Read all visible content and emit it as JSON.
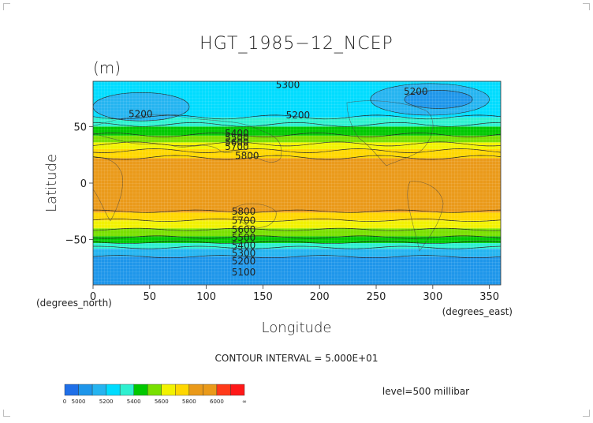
{
  "chart_data": {
    "type": "heatmap",
    "title": "HGT_1985−12_NCEP",
    "units": "(m)",
    "xlabel": "Longitude",
    "ylabel": "Latitude",
    "xunit_label": "(degrees_east)",
    "yunit_label": "(degrees_north)",
    "xlim": [
      0,
      360
    ],
    "ylim": [
      -90,
      90
    ],
    "xticks": [
      0,
      50,
      100,
      150,
      200,
      250,
      300,
      350
    ],
    "yticks": [
      -50,
      0,
      50
    ],
    "contour_interval_text": "CONTOUR INTERVAL = 5.000E+01",
    "level_text": "level=500 millibar",
    "colorbar": {
      "tick_labels": [
        "0",
        "5000",
        "5200",
        "5400",
        "5600",
        "5800",
        "6000",
        "∞"
      ],
      "bins": [
        {
          "lo": 0,
          "hi": 5000,
          "color": "#1f6fe8"
        },
        {
          "lo": 5000,
          "hi": 5100,
          "color": "#1e96ea"
        },
        {
          "lo": 5100,
          "hi": 5200,
          "color": "#25b4f0"
        },
        {
          "lo": 5200,
          "hi": 5300,
          "color": "#00dcff"
        },
        {
          "lo": 5300,
          "hi": 5400,
          "color": "#2ef0d0"
        },
        {
          "lo": 5400,
          "hi": 5500,
          "color": "#00c800"
        },
        {
          "lo": 5500,
          "hi": 5600,
          "color": "#78e000"
        },
        {
          "lo": 5600,
          "hi": 5700,
          "color": "#f2f200"
        },
        {
          "lo": 5700,
          "hi": 5800,
          "color": "#ffd700"
        },
        {
          "lo": 5800,
          "hi": 5900,
          "color": "#ea9a1a"
        },
        {
          "lo": 5900,
          "hi": 6000,
          "color": "#ea9a1a"
        },
        {
          "lo": 6000,
          "hi": 6100,
          "color": "#ff3a1a"
        },
        {
          "lo": 6100,
          "hi": 99999,
          "color": "#ff1818"
        }
      ]
    },
    "contour_labels": [
      {
        "text": "5300",
        "lon": 172,
        "lat": 87
      },
      {
        "text": "5200",
        "lon": 285,
        "lat": 81
      },
      {
        "text": "5200",
        "lon": 42,
        "lat": 61
      },
      {
        "text": "5200",
        "lon": 181,
        "lat": 60
      },
      {
        "text": "5400",
        "lon": 127,
        "lat": 44
      },
      {
        "text": "5500",
        "lon": 127,
        "lat": 40
      },
      {
        "text": "5600",
        "lon": 127,
        "lat": 36
      },
      {
        "text": "5700",
        "lon": 127,
        "lat": 32
      },
      {
        "text": "5800",
        "lon": 136,
        "lat": 24
      },
      {
        "text": "5800",
        "lon": 133,
        "lat": -25
      },
      {
        "text": "5700",
        "lon": 133,
        "lat": -33
      },
      {
        "text": "5600",
        "lon": 133,
        "lat": -41
      },
      {
        "text": "5500",
        "lon": 133,
        "lat": -48
      },
      {
        "text": "5400",
        "lon": 133,
        "lat": -55
      },
      {
        "text": "5300",
        "lon": 133,
        "lat": -62
      },
      {
        "text": "5200",
        "lon": 133,
        "lat": -69
      },
      {
        "text": "5100",
        "lon": 133,
        "lat": -79
      }
    ],
    "field_bands": [
      {
        "lat_lo": -90,
        "lat_hi": -65,
        "value": 5080
      },
      {
        "lat_lo": -65,
        "lat_hi": -58,
        "value": 5150
      },
      {
        "lat_lo": -58,
        "lat_hi": -53,
        "value": 5330
      },
      {
        "lat_lo": -53,
        "lat_hi": -47,
        "value": 5450
      },
      {
        "lat_lo": -47,
        "lat_hi": -40,
        "value": 5550
      },
      {
        "lat_lo": -40,
        "lat_hi": -33,
        "value": 5650
      },
      {
        "lat_lo": -33,
        "lat_hi": -26,
        "value": 5760
      },
      {
        "lat_lo": -26,
        "lat_hi": 22,
        "value": 5860
      },
      {
        "lat_lo": 22,
        "lat_hi": 30,
        "value": 5760
      },
      {
        "lat_lo": 30,
        "lat_hi": 36,
        "value": 5650
      },
      {
        "lat_lo": 36,
        "lat_hi": 42,
        "value": 5540
      },
      {
        "lat_lo": 42,
        "lat_hi": 50,
        "value": 5430
      },
      {
        "lat_lo": 50,
        "lat_hi": 58,
        "value": 5350
      },
      {
        "lat_lo": 58,
        "lat_hi": 90,
        "value": 5230
      }
    ],
    "lows": [
      {
        "lon_lo": 0,
        "lon_hi": 85,
        "lat_lo": 55,
        "lat_hi": 80,
        "value": 5150
      },
      {
        "lon_lo": 245,
        "lon_hi": 350,
        "lat_lo": 60,
        "lat_hi": 88,
        "value": 5180
      },
      {
        "lon_lo": 275,
        "lon_hi": 335,
        "lat_lo": 66,
        "lat_hi": 82,
        "value": 5080
      }
    ]
  }
}
